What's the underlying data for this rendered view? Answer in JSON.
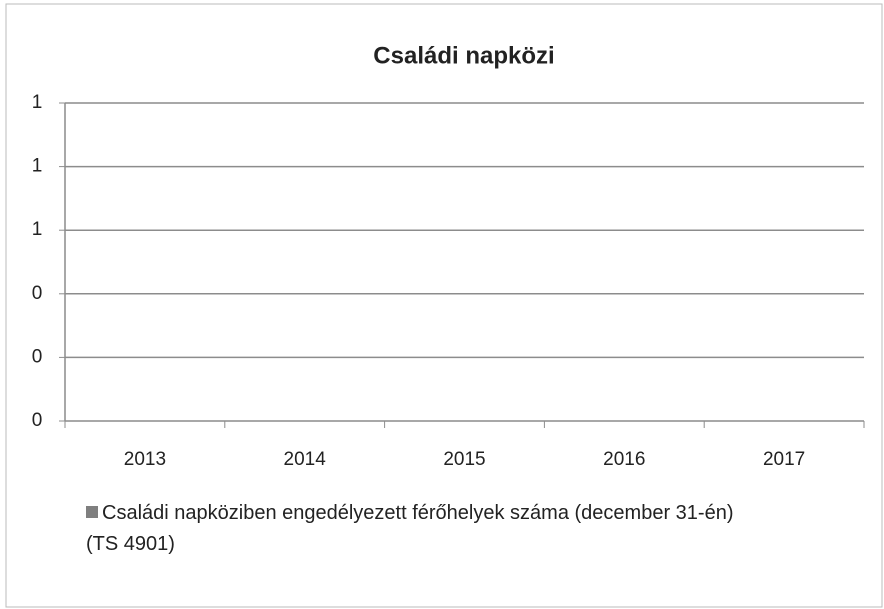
{
  "chart_data": {
    "type": "bar",
    "title": "Családi napközi",
    "categories": [
      "2013",
      "2014",
      "2015",
      "2016",
      "2017"
    ],
    "series": [
      {
        "name": "Családi napköziben engedélyezett férőhelyek száma (december 31-én)\n(TS 4901)",
        "color": "#7f7f7f",
        "values": [
          0,
          0,
          0,
          0,
          0
        ]
      }
    ],
    "ylim": [
      0,
      1
    ],
    "yticks": [
      0,
      {
        "value": 0.2,
        "label": "0"
      },
      {
        "value": 0.4,
        "label": "0"
      },
      {
        "value": 0.6,
        "label": "1"
      },
      {
        "value": 0.8,
        "label": "1"
      },
      1
    ],
    "grid": true,
    "legend": "bottom"
  }
}
